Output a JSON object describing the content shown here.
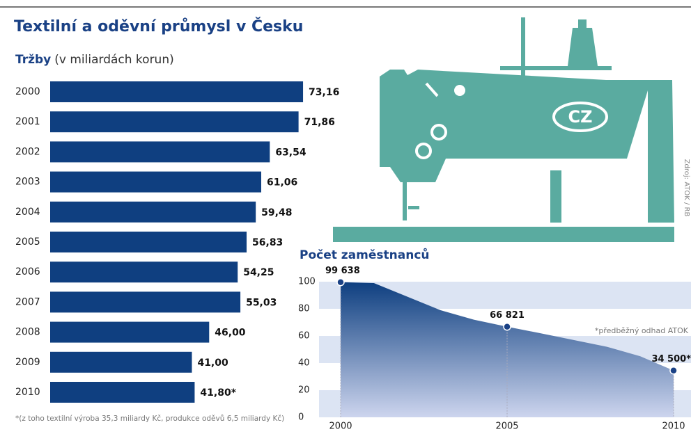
{
  "title": "Textilní a oděvní průmysl v Česku",
  "source": "Zdroj: ATOK / RB",
  "illustration_label": "CZ",
  "chart_data": [
    {
      "type": "bar",
      "orientation": "horizontal",
      "title": "Tržby",
      "subtitle": "(v miliardách korun)",
      "categories": [
        "2000",
        "2001",
        "2002",
        "2003",
        "2004",
        "2005",
        "2006",
        "2007",
        "2008",
        "2009",
        "2010"
      ],
      "values": [
        73.16,
        71.86,
        63.54,
        61.06,
        59.48,
        56.83,
        54.25,
        55.03,
        46.0,
        41.0,
        41.8
      ],
      "value_labels": [
        "73,16",
        "71,86",
        "63,54",
        "61,06",
        "59,48",
        "56,83",
        "54,25",
        "55,03",
        "46,00",
        "41,00",
        "41,80*"
      ],
      "color": "#0f3f80",
      "xlim": [
        0,
        80
      ],
      "annotation": "*(z toho textilní výroba 35,3 miliardy Kč, produkce oděvů 6,5 miliardy Kč)"
    },
    {
      "type": "area",
      "title": "Počet zaměstnanců",
      "annotation": "*předběžný odhad ATOK",
      "x": [
        2000,
        2001,
        2002,
        2003,
        2004,
        2005,
        2006,
        2007,
        2008,
        2009,
        2010
      ],
      "values": [
        99.638,
        99,
        89,
        79,
        72,
        66.821,
        62,
        57,
        52,
        45,
        34.5
      ],
      "value_labels": [
        "99 638",
        null,
        null,
        null,
        null,
        "66 821",
        null,
        null,
        null,
        null,
        "34 500*"
      ],
      "color": "#0e3f80",
      "xlim": [
        2000,
        2010
      ],
      "xticks": [
        2000,
        2005,
        2010
      ],
      "ylim": [
        0,
        100
      ],
      "yticks": [
        0,
        20,
        40,
        60,
        80,
        100
      ],
      "grid": "bands"
    }
  ]
}
